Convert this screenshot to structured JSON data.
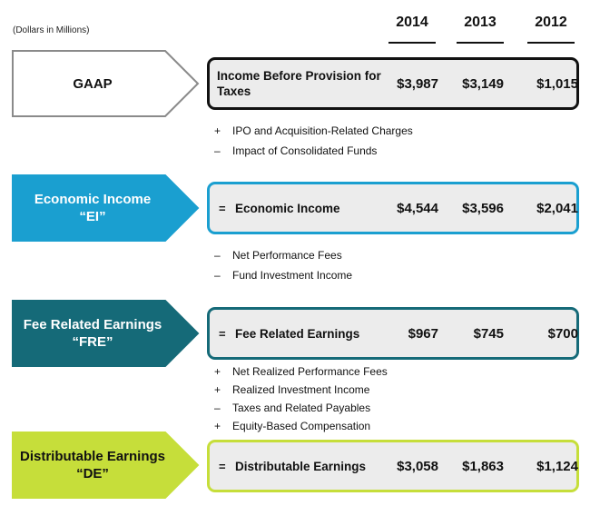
{
  "units_note": "(Dollars in Millions)",
  "years": [
    "2014",
    "2013",
    "2012"
  ],
  "sections": [
    {
      "arrow_lines": [
        "GAAP"
      ],
      "arrow_fill": "#ffffff",
      "arrow_stroke": "#8a8a8a",
      "arrow_text_color": "#111111",
      "box_border": "#111111",
      "sign": "",
      "label": "Income Before Provision for Taxes",
      "values": [
        "$3,987",
        "$3,149",
        "$1,015"
      ]
    },
    {
      "arrow_lines": [
        "Economic Income",
        "“EI”"
      ],
      "arrow_fill": "#1a9fd0",
      "arrow_stroke": "#1a9fd0",
      "arrow_text_color": "#ffffff",
      "box_border": "#1a9fd0",
      "sign": "=",
      "label": "Economic Income",
      "values": [
        "$4,544",
        "$3,596",
        "$2,041"
      ]
    },
    {
      "arrow_lines": [
        "Fee Related Earnings",
        "“FRE”"
      ],
      "arrow_fill": "#156a78",
      "arrow_stroke": "#156a78",
      "arrow_text_color": "#ffffff",
      "box_border": "#156a78",
      "sign": "=",
      "label": "Fee Related Earnings",
      "values": [
        "$967",
        "$745",
        "$700"
      ]
    },
    {
      "arrow_lines": [
        "Distributable Earnings",
        "“DE”"
      ],
      "arrow_fill": "#c6de3a",
      "arrow_stroke": "#c6de3a",
      "arrow_text_color": "#111111",
      "box_border": "#c6de3a",
      "sign": "=",
      "label": "Distributable Earnings",
      "values": [
        "$3,058",
        "$1,863",
        "$1,124"
      ]
    }
  ],
  "adjustments": [
    [
      {
        "op": "+",
        "text": "IPO and Acquisition-Related Charges"
      },
      {
        "op": "–",
        "text": "Impact of Consolidated Funds"
      }
    ],
    [
      {
        "op": "–",
        "text": "Net Performance Fees"
      },
      {
        "op": "–",
        "text": "Fund Investment Income"
      }
    ],
    [
      {
        "op": "+",
        "text": "Net Realized Performance Fees"
      },
      {
        "op": "+",
        "text": "Realized Investment Income"
      },
      {
        "op": "–",
        "text": "Taxes and Related Payables"
      },
      {
        "op": "+",
        "text": "Equity-Based Compensation"
      }
    ]
  ]
}
